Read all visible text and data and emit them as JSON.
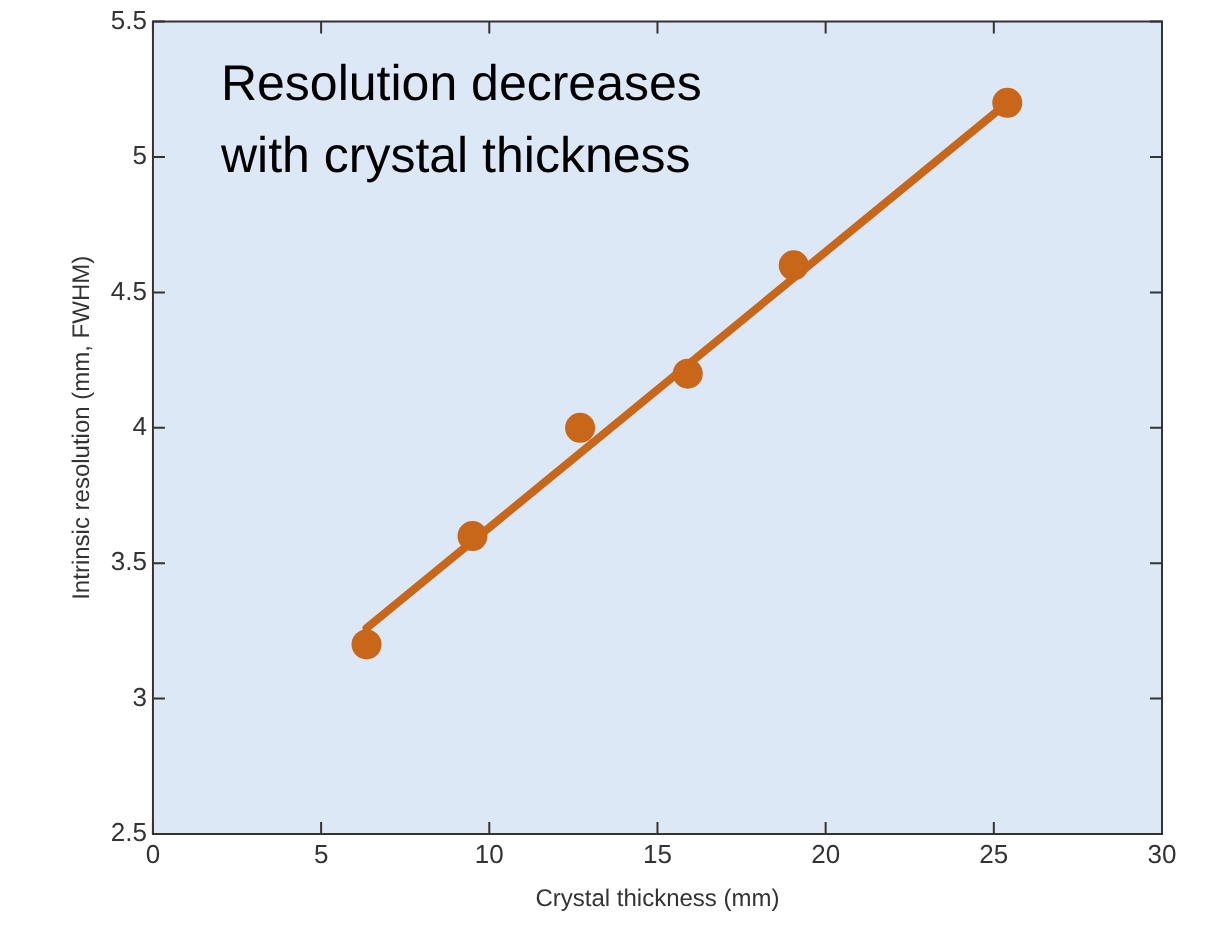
{
  "chart_data": {
    "type": "scatter",
    "xlabel": "Crystal thickness (mm)",
    "ylabel": "Intrinsic resolution (mm, FWHM)",
    "annotations": [
      "Resolution decreases\nwith crystal thickness"
    ],
    "xlim": [
      0,
      30
    ],
    "xticks": [
      0,
      5,
      10,
      15,
      20,
      25,
      30
    ],
    "ylim": [
      2.5,
      5.5
    ],
    "yticks": [
      2.5,
      3,
      3.5,
      4,
      4.5,
      5,
      5.5
    ],
    "grid": false,
    "legend": false,
    "marker": "circle",
    "series": [
      {
        "type": "scatter",
        "color": "#c8661a",
        "x": [
          6.35,
          9.5,
          12.7,
          15.9,
          19.05,
          25.4
        ],
        "values": [
          3.2,
          3.6,
          4.0,
          4.2,
          4.6,
          5.2
        ]
      },
      {
        "type": "line",
        "color": "#c8661a",
        "x": [
          6.35,
          25.4
        ],
        "values": [
          3.26,
          5.2
        ],
        "marker": "none",
        "line_style": "solid"
      }
    ]
  }
}
